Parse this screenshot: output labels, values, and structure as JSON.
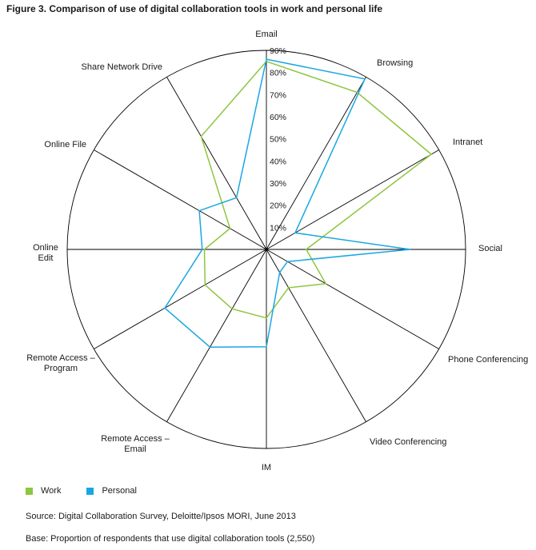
{
  "figure": {
    "title": "Figure 3. Comparison of use of digital collaboration tools in work and personal life",
    "source": "Source: Digital Collaboration Survey, Deloitte/Ipsos MORI, June 2013",
    "base": "Base: Proportion of respondents that use digital collaboration tools (2,550)"
  },
  "colors": {
    "work": "#8dc63f",
    "personal": "#1aa7e1",
    "axis": "#000000"
  },
  "chart_data": {
    "type": "radar",
    "title": "Figure 3. Comparison of use of digital collaboration tools in work and personal life",
    "categories": [
      "Email",
      "Browsing",
      "Intranet",
      "Social",
      "Phone Conferencing",
      "Video Conferencing",
      "IM",
      "Remote Access – Email",
      "Remote Access – Program",
      "Online Edit",
      "Online File",
      "Share Network Drive"
    ],
    "category_lines": [
      [
        "Email"
      ],
      [
        "Browsing"
      ],
      [
        "Intranet"
      ],
      [
        "Social"
      ],
      [
        "Phone Conferencing"
      ],
      [
        "Video Conferencing"
      ],
      [
        "IM"
      ],
      [
        "Remote Access –",
        "Email"
      ],
      [
        "Remote Access –",
        "Program"
      ],
      [
        "Online",
        "Edit"
      ],
      [
        "Online File"
      ],
      [
        "Share Network Drive"
      ]
    ],
    "r_ticks": [
      "10%",
      "20%",
      "30%",
      "40%",
      "50%",
      "60%",
      "70%",
      "80%",
      "90%"
    ],
    "rlim": [
      0,
      90
    ],
    "series": [
      {
        "name": "Work",
        "values": [
          85,
          82,
          86,
          18,
          31,
          20,
          31,
          31,
          32,
          28,
          19,
          59
        ]
      },
      {
        "name": "Personal",
        "values": [
          86,
          89,
          15,
          65,
          11,
          12,
          44,
          51,
          53,
          29,
          35,
          27
        ]
      }
    ],
    "legend_position": "bottom-left",
    "grid": false
  }
}
